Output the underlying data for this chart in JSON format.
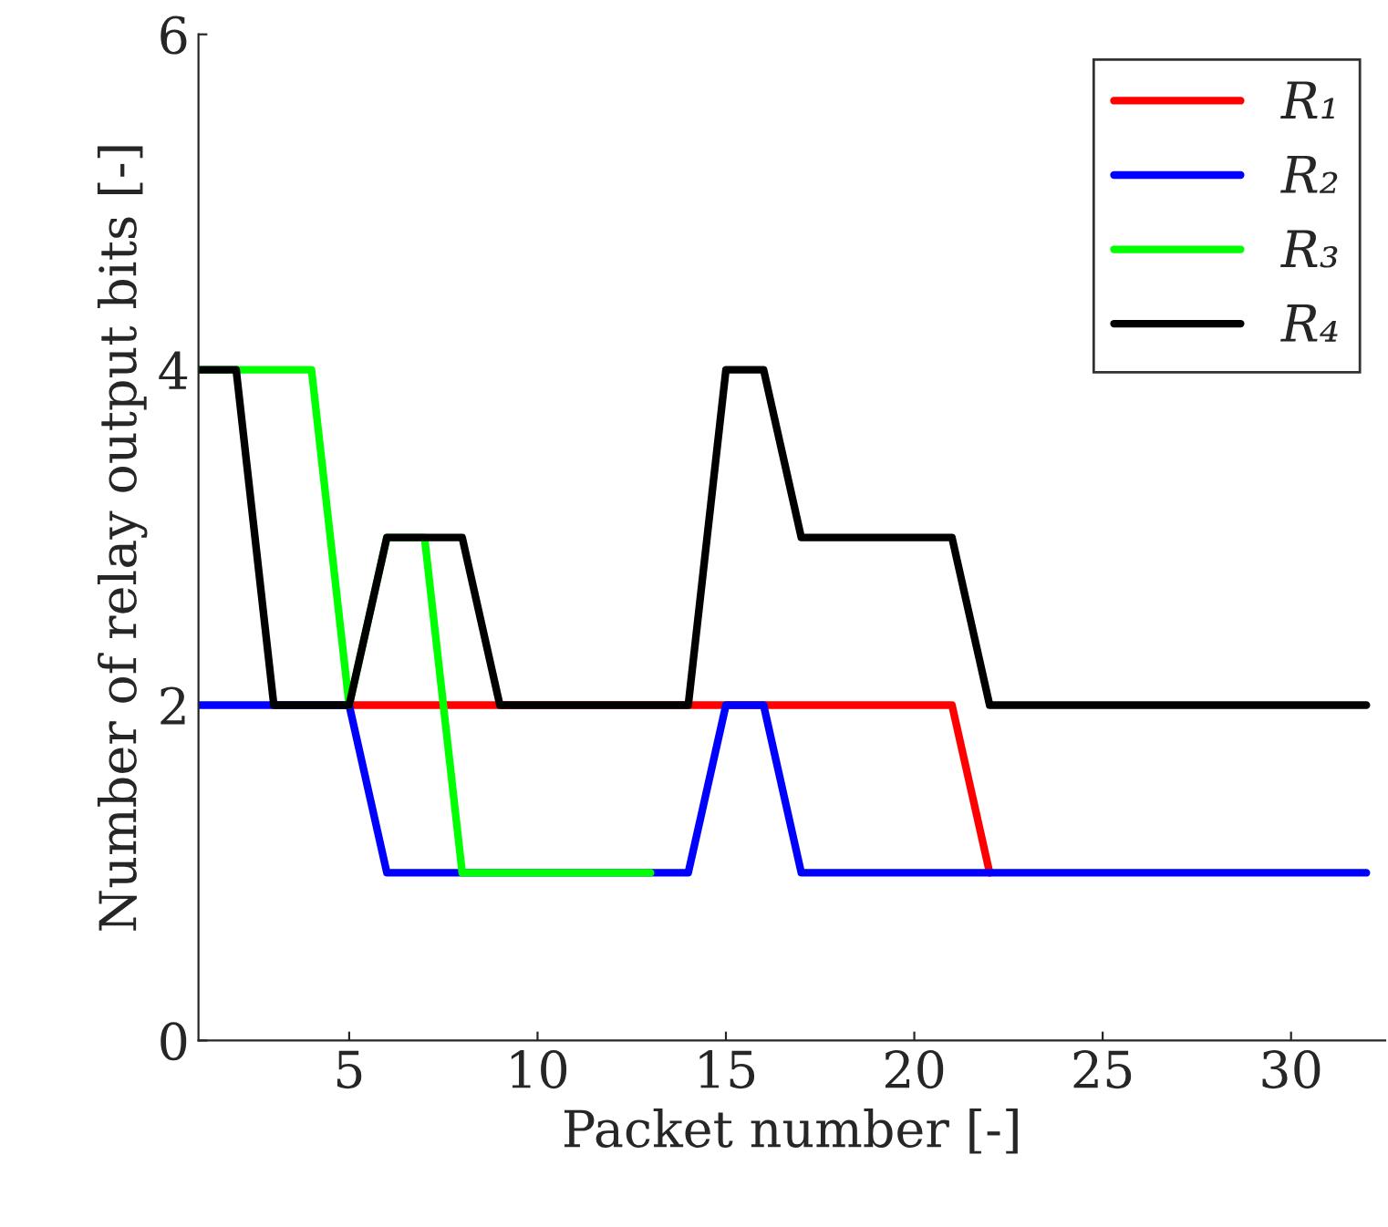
{
  "chart_data": {
    "type": "line",
    "xlabel": "Packet number [-]",
    "ylabel": "Number of relay output bits [-]",
    "xlim": [
      1,
      32.5
    ],
    "xticks": [
      5,
      10,
      15,
      20,
      25,
      30
    ],
    "ylim": [
      0,
      6
    ],
    "yticks": [
      0,
      2,
      4,
      6
    ],
    "grid": false,
    "legend": "top right",
    "line_style": "solid",
    "marker": "none",
    "series": [
      {
        "name": "R₁",
        "color": "#ff0000",
        "x": [
          5,
          6,
          7,
          8,
          9,
          14,
          15,
          16,
          17,
          18,
          19,
          20,
          21,
          22
        ],
        "values": [
          2,
          2,
          2,
          2,
          2,
          2,
          2,
          2,
          2,
          2,
          2,
          2,
          2,
          1
        ]
      },
      {
        "name": "R₂",
        "color": "#0000ff",
        "x": [
          1,
          2,
          3,
          5,
          6,
          7,
          8,
          13,
          14,
          15,
          16,
          17,
          18,
          19,
          20,
          21,
          22,
          23,
          24,
          25,
          26,
          27,
          28,
          29,
          30,
          31,
          32
        ],
        "values": [
          2,
          2,
          2,
          2,
          1,
          1,
          1,
          1,
          1,
          2,
          2,
          1,
          1,
          1,
          1,
          1,
          1,
          1,
          1,
          1,
          1,
          1,
          1,
          1,
          1,
          1,
          1
        ]
      },
      {
        "name": "R₃",
        "color": "#00ff00",
        "x": [
          1,
          2,
          3,
          4,
          5,
          6,
          7,
          8,
          9,
          10,
          11,
          12,
          13
        ],
        "values": [
          4,
          4,
          4,
          4,
          2,
          3,
          3,
          1,
          1,
          1,
          1,
          1,
          1
        ]
      },
      {
        "name": "R₄",
        "color": "#000000",
        "x": [
          1,
          2,
          3,
          4,
          5,
          6,
          7,
          8,
          9,
          10,
          11,
          12,
          13,
          14,
          15,
          16,
          17,
          18,
          19,
          20,
          21,
          22,
          23,
          24,
          25,
          26,
          27,
          28,
          29,
          30,
          31,
          32
        ],
        "values": [
          4,
          4,
          2,
          2,
          2,
          3,
          3,
          3,
          2,
          2,
          2,
          2,
          2,
          2,
          4,
          4,
          3,
          3,
          3,
          3,
          3,
          2,
          2,
          2,
          2,
          2,
          2,
          2,
          2,
          2,
          2,
          2
        ]
      }
    ]
  }
}
